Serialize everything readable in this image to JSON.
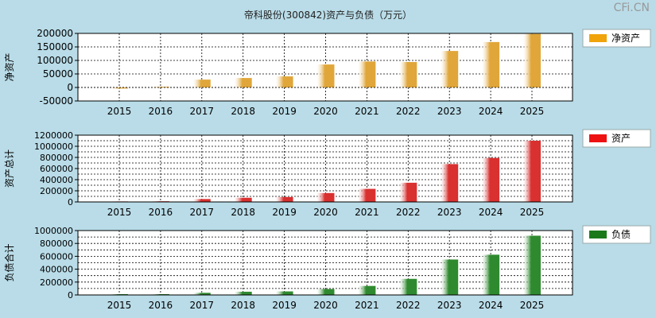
{
  "title": "帝科股份(300842)资产与负债（万元）",
  "watermark": "CFi.CN",
  "colors": {
    "background": "#b9dce8",
    "plot_bg": "#ffffff",
    "grid": "#000000"
  },
  "chart_data": [
    {
      "type": "bar",
      "ylabel": "净资产",
      "legend": "净资产",
      "legend_color": "#f0a30a",
      "bar_color": "#e0a63a",
      "categories": [
        "2015",
        "2016",
        "2017",
        "2018",
        "2019",
        "2020",
        "2021",
        "2022",
        "2023",
        "2024",
        "2025"
      ],
      "values": [
        -4000,
        2500,
        29000,
        35000,
        41000,
        85000,
        96000,
        94000,
        135000,
        168000,
        198000
      ],
      "ylim": [
        -50000,
        200000
      ],
      "yticks": [
        200000,
        150000,
        100000,
        50000,
        0,
        -50000
      ],
      "ytick_labels": [
        "200000",
        "150000",
        "100000",
        "50000",
        "0",
        "-50000"
      ],
      "grid": true,
      "legend_position": "top-right"
    },
    {
      "type": "bar",
      "ylabel": "资产总计",
      "legend": "资产",
      "legend_color": "#ee1111",
      "bar_color": "#d93030",
      "categories": [
        "2015",
        "2016",
        "2017",
        "2018",
        "2019",
        "2020",
        "2021",
        "2022",
        "2023",
        "2024",
        "2025"
      ],
      "values": [
        9000,
        12000,
        52000,
        75000,
        88000,
        160000,
        235000,
        345000,
        680000,
        790000,
        1100000
      ],
      "ylim": [
        0,
        1200000
      ],
      "yticks": [
        1200000,
        1000000,
        800000,
        600000,
        400000,
        200000,
        0
      ],
      "ytick_labels": [
        "1200000",
        "1000000",
        "800000",
        "600000",
        "400000",
        "200000",
        "0"
      ],
      "minor_ticks": [
        1100000,
        900000,
        700000,
        500000,
        300000,
        100000
      ],
      "grid": true,
      "legend_position": "top-right"
    },
    {
      "type": "bar",
      "ylabel": "负债合计",
      "legend": "负债",
      "legend_color": "#1a7a1a",
      "bar_color": "#2f8a2f",
      "categories": [
        "2015",
        "2016",
        "2017",
        "2018",
        "2019",
        "2020",
        "2021",
        "2022",
        "2023",
        "2024",
        "2025"
      ],
      "values": [
        13000,
        13000,
        33000,
        50000,
        55000,
        92000,
        140000,
        250000,
        550000,
        625000,
        920000
      ],
      "ylim": [
        0,
        1000000
      ],
      "yticks": [
        1000000,
        800000,
        600000,
        400000,
        200000,
        0
      ],
      "ytick_labels": [
        "1000000",
        "800000",
        "600000",
        "400000",
        "200000",
        "0"
      ],
      "minor_ticks": [
        900000,
        700000,
        500000,
        300000,
        100000
      ],
      "grid": true,
      "legend_position": "top-right"
    }
  ]
}
